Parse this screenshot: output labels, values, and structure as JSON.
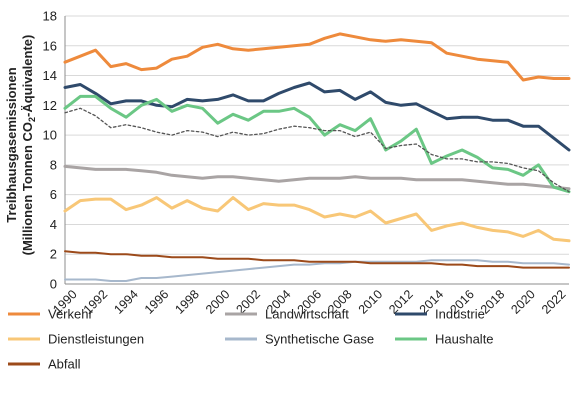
{
  "chart_data": {
    "type": "line",
    "ylabel_line1": "Treibhausgasemissionen",
    "ylabel_line2_pre": "(Millionen Tonnen CO",
    "ylabel_line2_sub": "2",
    "ylabel_line2_post": "-Äquivalente)",
    "ylim": [
      0,
      18
    ],
    "yticks": [
      0,
      2,
      4,
      6,
      8,
      10,
      12,
      14,
      16,
      18
    ],
    "x": [
      1990,
      1991,
      1992,
      1993,
      1994,
      1995,
      1996,
      1997,
      1998,
      1999,
      2000,
      2001,
      2002,
      2003,
      2004,
      2005,
      2006,
      2007,
      2008,
      2009,
      2010,
      2011,
      2012,
      2013,
      2014,
      2015,
      2016,
      2017,
      2018,
      2019,
      2020,
      2021,
      2022,
      2023
    ],
    "xticks": [
      "1990",
      "1992",
      "1994",
      "1996",
      "1998",
      "2000",
      "2002",
      "2004",
      "2006",
      "2008",
      "2010",
      "2012",
      "2014",
      "2016",
      "2018",
      "2020",
      "2022"
    ],
    "grid": true,
    "legend_position": "bottom",
    "series": [
      {
        "name": "Verkehr",
        "color": "#ee8a3c",
        "style": "solid",
        "width": 3,
        "values": [
          14.9,
          15.3,
          15.7,
          14.6,
          14.8,
          14.4,
          14.5,
          15.1,
          15.3,
          15.9,
          16.1,
          15.8,
          15.7,
          15.8,
          15.9,
          16.0,
          16.1,
          16.5,
          16.8,
          16.6,
          16.4,
          16.3,
          16.4,
          16.3,
          16.2,
          15.5,
          15.3,
          15.1,
          15.0,
          14.9,
          13.7,
          13.9,
          13.8,
          13.8
        ]
      },
      {
        "name": "Landwirtschaft",
        "color": "#a9a4a4",
        "style": "solid",
        "width": 3,
        "values": [
          7.9,
          7.8,
          7.7,
          7.7,
          7.7,
          7.6,
          7.5,
          7.3,
          7.2,
          7.1,
          7.2,
          7.2,
          7.1,
          7.0,
          6.9,
          7.0,
          7.1,
          7.1,
          7.1,
          7.2,
          7.1,
          7.1,
          7.1,
          7.0,
          7.0,
          7.0,
          7.0,
          6.9,
          6.8,
          6.7,
          6.7,
          6.6,
          6.5,
          6.4
        ]
      },
      {
        "name": "Industrie",
        "color": "#2f4a6b",
        "style": "solid",
        "width": 3,
        "values": [
          13.2,
          13.4,
          12.8,
          12.1,
          12.3,
          12.3,
          12.0,
          11.9,
          12.4,
          12.3,
          12.4,
          12.7,
          12.3,
          12.3,
          12.8,
          13.2,
          13.5,
          12.9,
          13.0,
          12.4,
          12.9,
          12.2,
          12.0,
          12.1,
          11.6,
          11.1,
          11.2,
          11.2,
          11.0,
          11.0,
          10.6,
          10.6,
          9.8,
          9.0
        ]
      },
      {
        "name": "Dienstleistungen",
        "color": "#f8c777",
        "style": "solid",
        "width": 3,
        "values": [
          4.9,
          5.6,
          5.7,
          5.7,
          5.0,
          5.3,
          5.8,
          5.1,
          5.6,
          5.1,
          4.9,
          5.8,
          5.0,
          5.4,
          5.3,
          5.3,
          5.0,
          4.5,
          4.7,
          4.5,
          4.9,
          4.1,
          4.4,
          4.7,
          3.6,
          3.9,
          4.1,
          3.8,
          3.6,
          3.5,
          3.2,
          3.6,
          3.0,
          2.9
        ]
      },
      {
        "name": "Synthetische Gase",
        "color": "#a7b8cc",
        "style": "solid",
        "width": 2,
        "values": [
          0.3,
          0.3,
          0.3,
          0.2,
          0.2,
          0.4,
          0.4,
          0.5,
          0.6,
          0.7,
          0.8,
          0.9,
          1.0,
          1.1,
          1.2,
          1.3,
          1.3,
          1.4,
          1.4,
          1.5,
          1.5,
          1.5,
          1.5,
          1.5,
          1.6,
          1.6,
          1.6,
          1.6,
          1.5,
          1.5,
          1.4,
          1.4,
          1.4,
          1.3
        ]
      },
      {
        "name": "Haushalte",
        "color": "#6bc785",
        "style": "solid",
        "width": 3,
        "values": [
          11.8,
          12.6,
          12.6,
          11.8,
          11.2,
          12.0,
          12.4,
          11.6,
          12.0,
          11.8,
          10.8,
          11.4,
          11.0,
          11.6,
          11.6,
          11.8,
          11.2,
          10.0,
          10.7,
          10.3,
          11.1,
          9.0,
          9.6,
          10.4,
          8.1,
          8.6,
          9.0,
          8.5,
          7.8,
          7.7,
          7.3,
          8.0,
          6.5,
          6.2
        ]
      },
      {
        "name": "Abfall",
        "color": "#9c4a1a",
        "style": "solid",
        "width": 2,
        "values": [
          2.2,
          2.1,
          2.1,
          2.0,
          2.0,
          1.9,
          1.9,
          1.8,
          1.8,
          1.8,
          1.7,
          1.7,
          1.7,
          1.6,
          1.6,
          1.6,
          1.5,
          1.5,
          1.5,
          1.5,
          1.4,
          1.4,
          1.4,
          1.4,
          1.4,
          1.3,
          1.3,
          1.2,
          1.2,
          1.2,
          1.1,
          1.1,
          1.1,
          1.1
        ]
      },
      {
        "name": "",
        "color": "#555555",
        "style": "dotted",
        "width": 1.3,
        "in_legend": false,
        "values": [
          11.5,
          11.8,
          11.3,
          10.5,
          10.7,
          10.5,
          10.2,
          10.0,
          10.3,
          10.2,
          9.9,
          10.2,
          10.0,
          10.1,
          10.4,
          10.6,
          10.5,
          10.3,
          10.3,
          9.9,
          10.2,
          9.1,
          9.3,
          9.4,
          8.7,
          8.4,
          8.4,
          8.2,
          8.2,
          8.1,
          7.8,
          7.6,
          6.8,
          6.2
        ]
      }
    ],
    "legend": [
      {
        "label": "Verkehr",
        "color": "#ee8a3c"
      },
      {
        "label": "Landwirtschaft",
        "color": "#a9a4a4"
      },
      {
        "label": "Industrie",
        "color": "#2f4a6b"
      },
      {
        "label": "Dienstleistungen",
        "color": "#f8c777"
      },
      {
        "label": "Synthetische Gase",
        "color": "#a7b8cc"
      },
      {
        "label": "Haushalte",
        "color": "#6bc785"
      },
      {
        "label": "Abfall",
        "color": "#9c4a1a"
      }
    ]
  }
}
